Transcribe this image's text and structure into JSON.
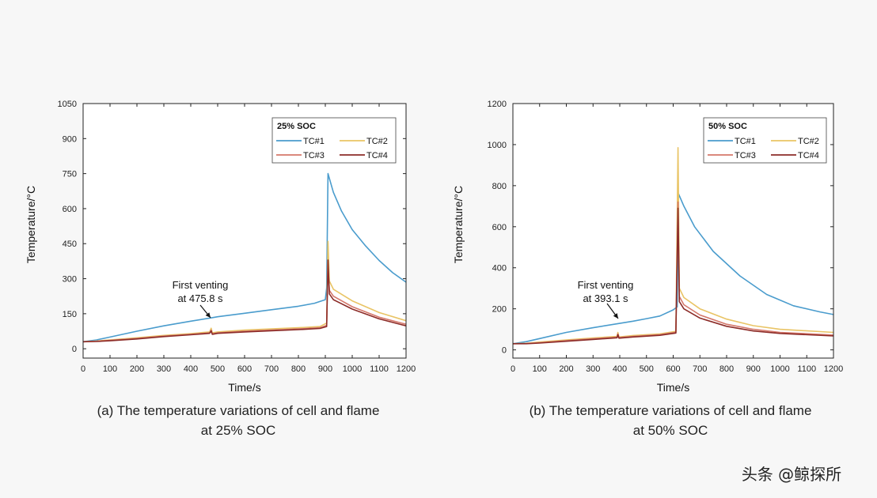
{
  "chart_data": [
    {
      "type": "line",
      "caption_line1": "(a) The temperature variations of cell and flame",
      "caption_line2": "at 25% SOC",
      "xlabel": "Time/s",
      "ylabel": "Temperature/°C",
      "xlim": [
        0,
        1200
      ],
      "ylim": [
        -40,
        1050
      ],
      "xticks": [
        0,
        100,
        200,
        300,
        400,
        500,
        600,
        700,
        800,
        900,
        1000,
        1100,
        1200
      ],
      "yticks": [
        0,
        150,
        300,
        450,
        600,
        750,
        900,
        1050
      ],
      "legend_title": "25% SOC",
      "legend_position": "top-right",
      "annotation": {
        "line1": "First venting",
        "line2": "at 475.8 s",
        "x": 475.8,
        "y": 125
      },
      "series": [
        {
          "name": "TC#1",
          "color": "#4a9ccd",
          "points": [
            [
              0,
              30
            ],
            [
              50,
              38
            ],
            [
              100,
              50
            ],
            [
              200,
              75
            ],
            [
              300,
              98
            ],
            [
              400,
              118
            ],
            [
              475,
              132
            ],
            [
              500,
              137
            ],
            [
              600,
              152
            ],
            [
              700,
              167
            ],
            [
              800,
              182
            ],
            [
              860,
              195
            ],
            [
              900,
              210
            ],
            [
              905,
              260
            ],
            [
              910,
              750
            ],
            [
              930,
              670
            ],
            [
              960,
              590
            ],
            [
              1000,
              510
            ],
            [
              1050,
              440
            ],
            [
              1100,
              378
            ],
            [
              1150,
              326
            ],
            [
              1200,
              285
            ]
          ]
        },
        {
          "name": "TC#2",
          "color": "#e9c465",
          "points": [
            [
              0,
              30
            ],
            [
              50,
              33
            ],
            [
              100,
              38
            ],
            [
              200,
              47
            ],
            [
              300,
              57
            ],
            [
              400,
              65
            ],
            [
              470,
              72
            ],
            [
              476,
              88
            ],
            [
              480,
              68
            ],
            [
              500,
              72
            ],
            [
              600,
              80
            ],
            [
              700,
              85
            ],
            [
              800,
              90
            ],
            [
              880,
              95
            ],
            [
              905,
              110
            ],
            [
              910,
              460
            ],
            [
              915,
              290
            ],
            [
              930,
              255
            ],
            [
              1000,
              205
            ],
            [
              1100,
              155
            ],
            [
              1200,
              120
            ]
          ]
        },
        {
          "name": "TC#3",
          "color": "#d4776a",
          "points": [
            [
              0,
              30
            ],
            [
              50,
              32
            ],
            [
              100,
              36
            ],
            [
              200,
              44
            ],
            [
              300,
              54
            ],
            [
              400,
              62
            ],
            [
              470,
              68
            ],
            [
              476,
              80
            ],
            [
              480,
              64
            ],
            [
              500,
              68
            ],
            [
              600,
              75
            ],
            [
              700,
              80
            ],
            [
              800,
              85
            ],
            [
              880,
              90
            ],
            [
              905,
              100
            ],
            [
              910,
              360
            ],
            [
              915,
              250
            ],
            [
              930,
              225
            ],
            [
              1000,
              180
            ],
            [
              1100,
              135
            ],
            [
              1200,
              105
            ]
          ]
        },
        {
          "name": "TC#4",
          "color": "#8c2c28",
          "points": [
            [
              0,
              30
            ],
            [
              50,
              31
            ],
            [
              100,
              34
            ],
            [
              200,
              42
            ],
            [
              300,
              52
            ],
            [
              400,
              60
            ],
            [
              470,
              66
            ],
            [
              476,
              76
            ],
            [
              480,
              62
            ],
            [
              500,
              66
            ],
            [
              600,
              72
            ],
            [
              700,
              77
            ],
            [
              800,
              82
            ],
            [
              880,
              87
            ],
            [
              905,
              95
            ],
            [
              910,
              380
            ],
            [
              915,
              235
            ],
            [
              930,
              210
            ],
            [
              1000,
              170
            ],
            [
              1100,
              128
            ],
            [
              1200,
              98
            ]
          ]
        }
      ]
    },
    {
      "type": "line",
      "caption_line1": "(b) The temperature variations of cell and flame",
      "caption_line2": "at 50% SOC",
      "xlabel": "Time/s",
      "ylabel": "Temperature/°C",
      "xlim": [
        0,
        1200
      ],
      "ylim": [
        -40,
        1200
      ],
      "xticks": [
        0,
        100,
        200,
        300,
        400,
        500,
        600,
        700,
        800,
        900,
        1000,
        1100,
        1200
      ],
      "yticks": [
        0,
        200,
        400,
        600,
        800,
        1000,
        1200
      ],
      "legend_title": "50% SOC",
      "legend_position": "top-right",
      "annotation": {
        "line1": "First venting",
        "line2": "at 393.1 s",
        "x": 393.1,
        "y": 115
      },
      "series": [
        {
          "name": "TC#1",
          "color": "#4a9ccd",
          "points": [
            [
              0,
              30
            ],
            [
              50,
              40
            ],
            [
              100,
              55
            ],
            [
              200,
              85
            ],
            [
              300,
              108
            ],
            [
              393,
              128
            ],
            [
              450,
              140
            ],
            [
              500,
              152
            ],
            [
              550,
              165
            ],
            [
              600,
              195
            ],
            [
              615,
              210
            ],
            [
              620,
              760
            ],
            [
              640,
              700
            ],
            [
              680,
              600
            ],
            [
              750,
              480
            ],
            [
              850,
              360
            ],
            [
              950,
              270
            ],
            [
              1050,
              215
            ],
            [
              1150,
              185
            ],
            [
              1200,
              172
            ]
          ]
        },
        {
          "name": "TC#2",
          "color": "#e9c465",
          "points": [
            [
              0,
              30
            ],
            [
              50,
              32
            ],
            [
              100,
              38
            ],
            [
              200,
              48
            ],
            [
              300,
              58
            ],
            [
              390,
              66
            ],
            [
              393,
              85
            ],
            [
              397,
              63
            ],
            [
              450,
              70
            ],
            [
              550,
              78
            ],
            [
              610,
              90
            ],
            [
              618,
              985
            ],
            [
              623,
              300
            ],
            [
              640,
              255
            ],
            [
              700,
              200
            ],
            [
              800,
              150
            ],
            [
              900,
              118
            ],
            [
              1000,
              100
            ],
            [
              1200,
              85
            ]
          ]
        },
        {
          "name": "TC#3",
          "color": "#d4776a",
          "points": [
            [
              0,
              30
            ],
            [
              50,
              31
            ],
            [
              100,
              35
            ],
            [
              200,
              45
            ],
            [
              300,
              54
            ],
            [
              390,
              62
            ],
            [
              393,
              78
            ],
            [
              397,
              60
            ],
            [
              450,
              66
            ],
            [
              550,
              74
            ],
            [
              610,
              86
            ],
            [
              618,
              720
            ],
            [
              623,
              260
            ],
            [
              640,
              220
            ],
            [
              700,
              170
            ],
            [
              800,
              125
            ],
            [
              900,
              100
            ],
            [
              1000,
              85
            ],
            [
              1200,
              72
            ]
          ]
        },
        {
          "name": "TC#4",
          "color": "#8c2c28",
          "points": [
            [
              0,
              30
            ],
            [
              50,
              30
            ],
            [
              100,
              33
            ],
            [
              200,
              42
            ],
            [
              300,
              51
            ],
            [
              390,
              59
            ],
            [
              393,
              74
            ],
            [
              397,
              57
            ],
            [
              450,
              63
            ],
            [
              550,
              71
            ],
            [
              610,
              82
            ],
            [
              618,
              690
            ],
            [
              623,
              235
            ],
            [
              640,
              200
            ],
            [
              700,
              155
            ],
            [
              800,
              115
            ],
            [
              900,
              92
            ],
            [
              1000,
              80
            ],
            [
              1200,
              68
            ]
          ]
        }
      ]
    }
  ],
  "watermark": "头条 @鲸探所"
}
